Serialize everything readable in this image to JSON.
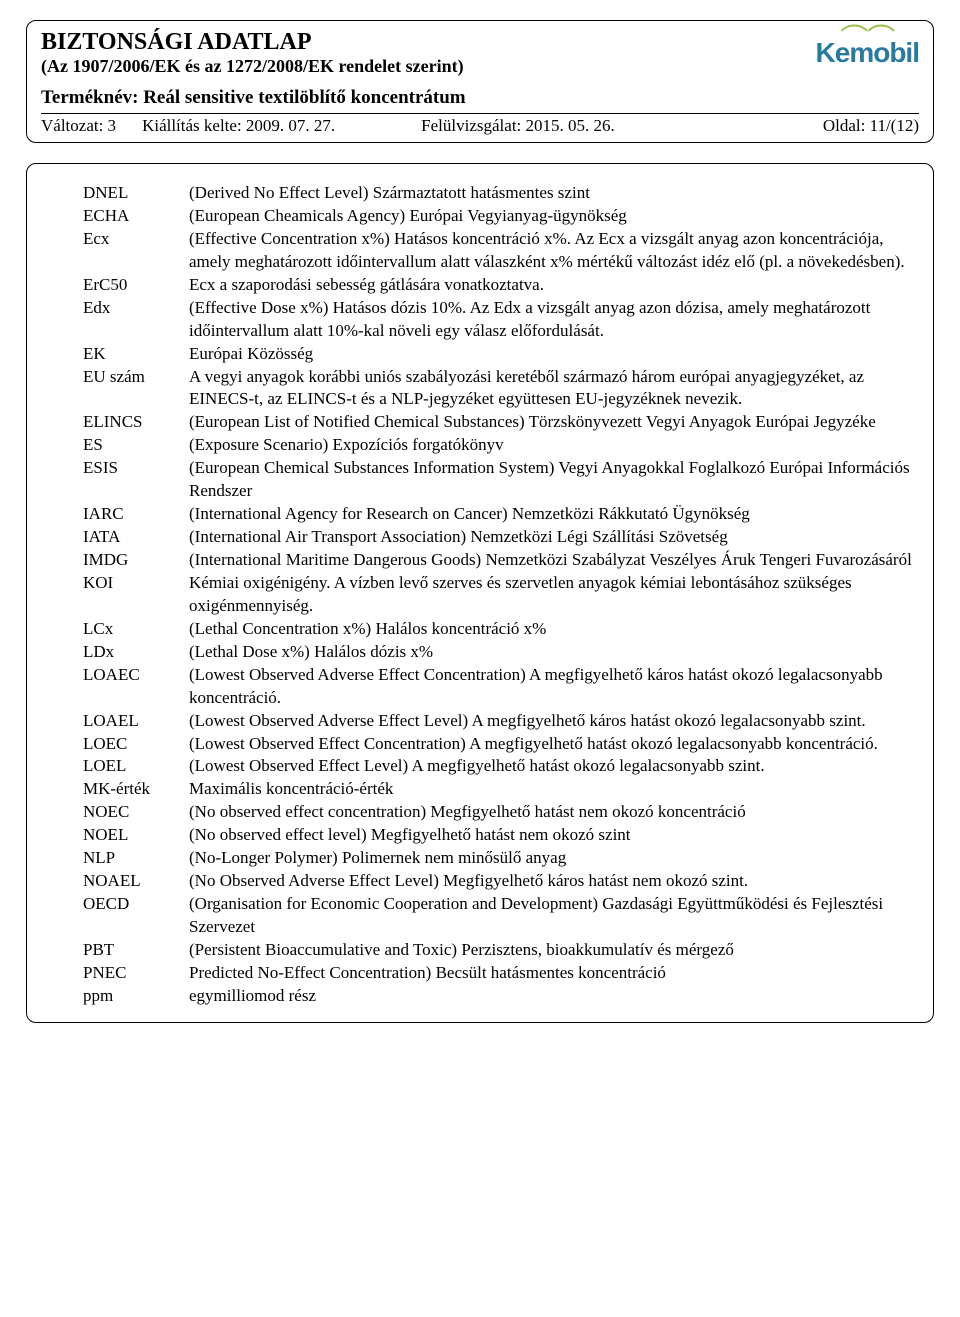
{
  "header": {
    "title": "BIZTONSÁGI ADATLAP",
    "subtitle": "(Az 1907/2006/EK és az 1272/2008/EK rendelet szerint)",
    "product": "Terméknév: Reál sensitive textilöblítő koncentrátum",
    "version": "Változat: 3",
    "issued": "Kiállítás kelte: 2009. 07. 27.",
    "revised": "Felülvizsgálat: 2015. 05. 26.",
    "page": "Oldal: 11/(12)",
    "logo_text": "Kemobil"
  },
  "defs": [
    {
      "t": "DNEL",
      "d": "(Derived No Effect Level) Származtatott hatásmentes szint"
    },
    {
      "t": "ECHA",
      "d": "(European Cheamicals Agency) Európai Vegyianyag-ügynökség"
    },
    {
      "t": "Ecx",
      "d": "(Effective Concentration x%) Hatásos koncentráció x%. Az Ecx a vizsgált anyag azon koncentrációja, amely meghatározott időintervallum alatt válaszként x% mértékű változást idéz elő (pl. a növekedésben)."
    },
    {
      "t": "ErC50",
      "d": "Ecx a szaporodási sebesség gátlására vonatkoztatva."
    },
    {
      "t": "Edx",
      "d": "(Effective Dose x%) Hatásos dózis 10%. Az Edx a vizsgált anyag azon dózisa, amely meghatározott időintervallum alatt 10%-kal növeli egy válasz előfordulását."
    },
    {
      "t": "EK",
      "d": "Európai Közösség"
    },
    {
      "t": "EU szám",
      "d": "A vegyi anyagok korábbi uniós szabályozási keretéből származó három európai anyagjegyzéket, az EINECS-t, az ELINCS-t és a NLP-jegyzéket együttesen EU-jegyzéknek nevezik."
    },
    {
      "t": "ELINCS",
      "d": "(European List of Notified Chemical Substances) Törzskönyvezett Vegyi Anyagok Európai Jegyzéke"
    },
    {
      "t": "ES",
      "d": "(Exposure Scenario) Expozíciós forgatókönyv"
    },
    {
      "t": "ESIS",
      "d": "(European Chemical Substances Information System) Vegyi Anyagokkal Foglalkozó Európai Információs Rendszer"
    },
    {
      "t": "IARC",
      "d": "(International Agency for Research on Cancer) Nemzetközi Rákkutató Ügynökség"
    },
    {
      "t": "IATA",
      "d": "(International Air Transport Association) Nemzetközi Légi Szállítási Szövetség"
    },
    {
      "t": "IMDG",
      "d": "(International Maritime Dangerous Goods) Nemzetközi Szabályzat Veszélyes Áruk Tengeri Fuvarozásáról"
    },
    {
      "t": "KOI",
      "d": "Kémiai oxigénigény. A vízben levő szerves és szervetlen anyagok kémiai lebontásához szükséges oxigénmennyiség."
    },
    {
      "t": "LCx",
      "d": "(Lethal Concentration x%) Halálos koncentráció x%"
    },
    {
      "t": "LDx",
      "d": "(Lethal Dose x%) Halálos dózis x%"
    },
    {
      "t": "LOAEC",
      "d": "(Lowest Observed Adverse Effect Concentration) A megfigyelhető káros hatást okozó legalacsonyabb koncentráció."
    },
    {
      "t": "LOAEL",
      "d": "(Lowest Observed Adverse Effect Level) A megfigyelhető káros hatást okozó legalacsonyabb szint."
    },
    {
      "t": "LOEC",
      "d": "(Lowest Observed Effect Concentration) A megfigyelhető hatást okozó legalacsonyabb koncentráció."
    },
    {
      "t": "LOEL",
      "d": "(Lowest Observed Effect Level) A megfigyelhető hatást okozó legalacsonyabb szint."
    },
    {
      "t": "MK-érték",
      "d": "Maximális koncentráció-érték"
    },
    {
      "t": "NOEC",
      "d": "(No observed effect concentration) Megfigyelhető hatást nem okozó koncentráció"
    },
    {
      "t": "NOEL",
      "d": "(No observed effect level) Megfigyelhető hatást nem okozó szint"
    },
    {
      "t": "NLP",
      "d": "(No-Longer Polymer) Polimernek nem minősülő anyag"
    },
    {
      "t": "NOAEL",
      "d": "(No Observed Adverse Effect Level) Megfigyelhető káros hatást nem okozó szint."
    },
    {
      "t": "OECD",
      "d": "(Organisation for Economic Cooperation and Development) Gazdasági Együttműködési és Fejlesztési Szervezet"
    },
    {
      "t": "PBT",
      "d": "(Persistent Bioaccumulative and Toxic) Perzisztens, bioakkumulatív és mérgező"
    },
    {
      "t": "PNEC",
      "d": "Predicted No-Effect Concentration) Becsült hatásmentes koncentráció"
    },
    {
      "t": "ppm",
      "d": "egymilliomod rész"
    }
  ]
}
